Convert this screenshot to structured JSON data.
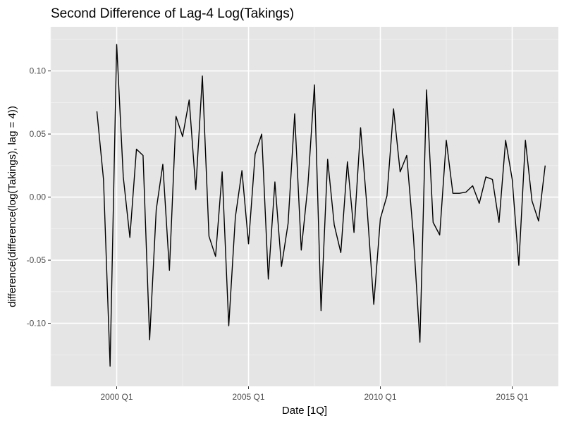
{
  "chart_data": {
    "type": "line",
    "title": "Second Difference of Lag-4 Log(Takings)",
    "xlabel": "Date [1Q]",
    "ylabel": "difference(difference(log(Takings), lag = 4))",
    "xlim": [
      "1997 Q3",
      "2016 Q4"
    ],
    "ylim": [
      -0.15,
      0.135
    ],
    "x_ticks": [
      "2000 Q1",
      "2005 Q1",
      "2010 Q1",
      "2015 Q1"
    ],
    "y_ticks": [
      "-0.10",
      "-0.05",
      "0.00",
      "0.05",
      "0.10"
    ],
    "y_tick_values": [
      -0.1,
      -0.05,
      0.0,
      0.05,
      0.1
    ],
    "grid": true,
    "background": "#e5e5e5",
    "line_color": "#000000",
    "series": [
      {
        "x": [
          "1999 Q2",
          "1999 Q3",
          "1999 Q4",
          "2000 Q1",
          "2000 Q2",
          "2000 Q3",
          "2000 Q4",
          "2001 Q1",
          "2001 Q2",
          "2001 Q3",
          "2001 Q4",
          "2002 Q1",
          "2002 Q2",
          "2002 Q3",
          "2002 Q4",
          "2003 Q1",
          "2003 Q2",
          "2003 Q3",
          "2003 Q4",
          "2004 Q1",
          "2004 Q2",
          "2004 Q3",
          "2004 Q4",
          "2005 Q1",
          "2005 Q2",
          "2005 Q3",
          "2005 Q4",
          "2006 Q1",
          "2006 Q2",
          "2006 Q3",
          "2006 Q4",
          "2007 Q1",
          "2007 Q2",
          "2007 Q3",
          "2007 Q4",
          "2008 Q1",
          "2008 Q2",
          "2008 Q3",
          "2008 Q4",
          "2009 Q1",
          "2009 Q2",
          "2009 Q3",
          "2009 Q4",
          "2010 Q1",
          "2010 Q2",
          "2010 Q3",
          "2010 Q4",
          "2011 Q1",
          "2011 Q2",
          "2011 Q3",
          "2011 Q4",
          "2012 Q1",
          "2012 Q2",
          "2012 Q3",
          "2012 Q4",
          "2013 Q1",
          "2013 Q2",
          "2013 Q3",
          "2013 Q4",
          "2014 Q1",
          "2014 Q2",
          "2014 Q3",
          "2014 Q4",
          "2015 Q1",
          "2015 Q2",
          "2015 Q3",
          "2015 Q4",
          "2016 Q1",
          "2016 Q2"
        ],
        "values": [
          0.068,
          0.014,
          -0.134,
          0.121,
          0.016,
          -0.032,
          0.038,
          0.033,
          -0.113,
          -0.01,
          0.026,
          -0.058,
          0.064,
          0.048,
          0.077,
          0.006,
          0.096,
          -0.031,
          -0.047,
          0.02,
          -0.102,
          -0.016,
          0.021,
          -0.037,
          0.034,
          0.05,
          -0.065,
          0.012,
          -0.055,
          -0.021,
          0.066,
          -0.042,
          0.009,
          0.089,
          -0.09,
          0.03,
          -0.022,
          -0.044,
          0.028,
          -0.028,
          0.055,
          -0.01,
          -0.085,
          -0.017,
          0.001,
          0.07,
          0.02,
          0.033,
          -0.03,
          -0.115,
          0.085,
          -0.02,
          -0.03,
          0.045,
          0.003,
          0.003,
          0.004,
          0.009,
          -0.005,
          0.016,
          0.014,
          -0.02,
          0.045,
          0.014,
          -0.054,
          0.045,
          -0.003,
          -0.019,
          0.025
        ]
      }
    ]
  }
}
